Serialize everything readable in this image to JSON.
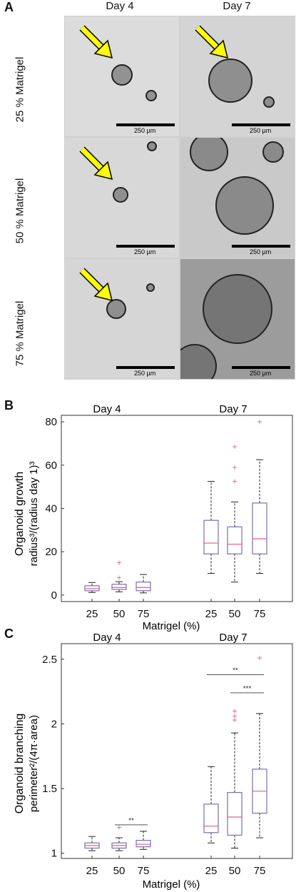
{
  "panel_a": {
    "letter": "A",
    "columns": [
      "Day 4",
      "Day 7"
    ],
    "rows": [
      "25 % Matrigel",
      "50 % Matrigel",
      "75 % Matrigel"
    ],
    "scale_bar_label": "250 µm",
    "arrow_color": "#ffff00",
    "arrow_cells": [
      [
        0,
        0
      ],
      [
        0,
        1
      ],
      [
        1,
        0
      ],
      [
        2,
        0
      ]
    ]
  },
  "chart_data": [
    {
      "type": "box",
      "panel_letter": "B",
      "group_labels": [
        "Day 4",
        "Day 7"
      ],
      "categories": [
        "25",
        "50",
        "75",
        "25",
        "50",
        "75"
      ],
      "xlabel": "Matrigel (%)",
      "ylabel_line1": "Organoid growth",
      "ylabel_line2": "radius³/(radius day 1)³",
      "ylim": [
        -3,
        83
      ],
      "yticks": [
        "0",
        "20",
        "40",
        "60",
        "80"
      ],
      "ytick_values": [
        0,
        20,
        40,
        60,
        80
      ],
      "box_color": "#7a6fb3",
      "median_color": "#e0607e",
      "outlier_color": "#e0607e",
      "boxes": [
        {
          "whisker_low": 1.2,
          "q1": 2.0,
          "median": 3.0,
          "q3": 4.3,
          "whisker_high": 5.8,
          "outliers": []
        },
        {
          "whisker_low": 1.5,
          "q1": 2.6,
          "median": 3.5,
          "q3": 5.0,
          "whisker_high": 6.2,
          "outliers": [
            8.0,
            15.0
          ]
        },
        {
          "whisker_low": 1.0,
          "q1": 2.0,
          "median": 3.5,
          "q3": 6.0,
          "whisker_high": 9.5,
          "outliers": []
        },
        {
          "whisker_low": 10.0,
          "q1": 19.0,
          "median": 24.0,
          "q3": 34.5,
          "whisker_high": 52.5,
          "outliers": []
        },
        {
          "whisker_low": 6.0,
          "q1": 19.0,
          "median": 23.5,
          "q3": 31.5,
          "whisker_high": 43.0,
          "outliers": [
            52.5,
            59.0,
            68.5
          ]
        },
        {
          "whisker_low": 10.0,
          "q1": 19.0,
          "median": 26.0,
          "q3": 42.5,
          "whisker_high": 62.5,
          "outliers": [
            80.0
          ]
        }
      ],
      "significance": []
    },
    {
      "type": "box",
      "panel_letter": "C",
      "group_labels": [
        "Day 4",
        "Day 7"
      ],
      "categories": [
        "25",
        "50",
        "75",
        "25",
        "50",
        "75"
      ],
      "xlabel": "Matrigel (%)",
      "ylabel_line1": "Organoid branching",
      "ylabel_line2": "perimeter²/(4π·area)",
      "ylim": [
        0.96,
        2.62
      ],
      "yticks": [
        "1",
        "1.5",
        "2",
        "2.5"
      ],
      "ytick_values": [
        1,
        1.5,
        2,
        2.5
      ],
      "box_color": "#7a6fb3",
      "median_color": "#e0607e",
      "outlier_color": "#e0607e",
      "boxes": [
        {
          "whisker_low": 1.02,
          "q1": 1.04,
          "median": 1.06,
          "q3": 1.08,
          "whisker_high": 1.13,
          "outliers": []
        },
        {
          "whisker_low": 1.02,
          "q1": 1.04,
          "median": 1.06,
          "q3": 1.08,
          "whisker_high": 1.12,
          "outliers": [
            1.2
          ]
        },
        {
          "whisker_low": 1.03,
          "q1": 1.05,
          "median": 1.07,
          "q3": 1.1,
          "whisker_high": 1.17,
          "outliers": []
        },
        {
          "whisker_low": 1.08,
          "q1": 1.16,
          "median": 1.21,
          "q3": 1.38,
          "whisker_high": 1.67,
          "outliers": []
        },
        {
          "whisker_low": 1.04,
          "q1": 1.14,
          "median": 1.28,
          "q3": 1.47,
          "whisker_high": 1.93,
          "outliers": [
            2.03,
            2.06,
            2.1
          ]
        },
        {
          "whisker_low": 1.12,
          "q1": 1.31,
          "median": 1.48,
          "q3": 1.65,
          "whisker_high": 2.08,
          "outliers": [
            2.51
          ]
        }
      ],
      "significance": [
        {
          "from": 1,
          "to": 2,
          "y": 1.22,
          "label": "**"
        },
        {
          "from": 3,
          "to": 5,
          "y": 2.38,
          "label": "**"
        },
        {
          "from": 4,
          "to": 5,
          "y": 2.24,
          "label": "***"
        }
      ]
    }
  ]
}
